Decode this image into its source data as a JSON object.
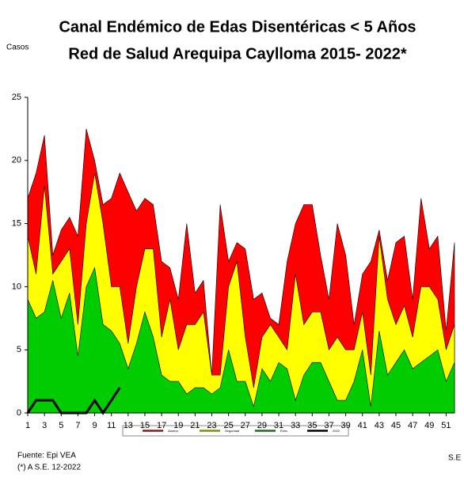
{
  "chart_data": {
    "type": "endemic-channel",
    "title": "Canal Endémico de Edas Disentéricas  < 5 Años",
    "subtitle": "Red  de Salud Arequipa Caylloma 2015- 2022*",
    "y_label": "Casos",
    "x_label": "S.E",
    "source": "Fuente: Epi VEA",
    "note": "(*) A S.E. 12-2022",
    "x": [
      1,
      2,
      3,
      4,
      5,
      6,
      7,
      8,
      9,
      10,
      11,
      12,
      13,
      14,
      15,
      16,
      17,
      18,
      19,
      20,
      21,
      22,
      23,
      24,
      25,
      26,
      27,
      28,
      29,
      30,
      31,
      32,
      33,
      34,
      35,
      36,
      37,
      38,
      39,
      40,
      41,
      42,
      43,
      44,
      45,
      46,
      47,
      48,
      49,
      50,
      51,
      52
    ],
    "xlim": [
      1,
      52
    ],
    "xticks": [
      1,
      3,
      5,
      7,
      9,
      11,
      13,
      15,
      17,
      19,
      21,
      23,
      25,
      27,
      29,
      31,
      33,
      35,
      37,
      39,
      41,
      43,
      45,
      47,
      49,
      51
    ],
    "ylim": [
      0,
      25
    ],
    "yticks": [
      0,
      5,
      10,
      15,
      20,
      25
    ],
    "series": [
      {
        "name": "Alarma",
        "color": "#ff0000",
        "kind": "area",
        "values": [
          17,
          19,
          22,
          12.5,
          14.5,
          15.5,
          14,
          22.5,
          20,
          16.5,
          17,
          19,
          17.5,
          16,
          17,
          16.5,
          12,
          11.5,
          9,
          15,
          9.5,
          10.5,
          3,
          16.5,
          12,
          13.5,
          13,
          9,
          9.5,
          7.5,
          7,
          12,
          15,
          16.5,
          16.5,
          12.5,
          9,
          15,
          12.5,
          7,
          11,
          12,
          14.5,
          10.5,
          13.5,
          14,
          9,
          17,
          13,
          14,
          6.5,
          13.5
        ]
      },
      {
        "name": "Seguridad",
        "color": "#ffff00",
        "kind": "area",
        "values": [
          14,
          11,
          18,
          11,
          12,
          13,
          7,
          15,
          19,
          15,
          10,
          10,
          5.5,
          10,
          13,
          13,
          6,
          9,
          5,
          7,
          7,
          8,
          3,
          3,
          10,
          12,
          6,
          2,
          6,
          7,
          6,
          5,
          11,
          7,
          8,
          8,
          5,
          6,
          5,
          5,
          8,
          3,
          14,
          9,
          7,
          8.5,
          6,
          10,
          10,
          9,
          5,
          7
        ]
      },
      {
        "name": "Éxito",
        "color": "#00cc00",
        "kind": "area",
        "values": [
          9,
          7.5,
          8,
          10.5,
          7.5,
          9.5,
          4.5,
          10,
          11.5,
          7,
          6.5,
          5.5,
          3.5,
          5.5,
          8,
          6,
          3,
          2.5,
          2.5,
          1.5,
          2,
          2,
          1.5,
          2,
          5,
          2.5,
          2.5,
          0.5,
          3.5,
          2.5,
          4,
          3.5,
          1,
          3,
          4,
          4,
          2.5,
          1,
          1,
          2.5,
          5,
          0.5,
          6.5,
          3,
          4,
          5,
          3.5,
          4,
          4.5,
          5,
          2.5,
          4
        ]
      },
      {
        "name": "2022",
        "color": "#000000",
        "kind": "line",
        "values": [
          0,
          1,
          1,
          1,
          0,
          0,
          0,
          0,
          1,
          0,
          1,
          2,
          null,
          null,
          null,
          null,
          null,
          null,
          null,
          null,
          null,
          null,
          null,
          null,
          null,
          null,
          null,
          null,
          null,
          null,
          null,
          null,
          null,
          null,
          null,
          null,
          null,
          null,
          null,
          null,
          null,
          null,
          null,
          null,
          null,
          null,
          null,
          null,
          null,
          null,
          null,
          null
        ]
      }
    ]
  }
}
